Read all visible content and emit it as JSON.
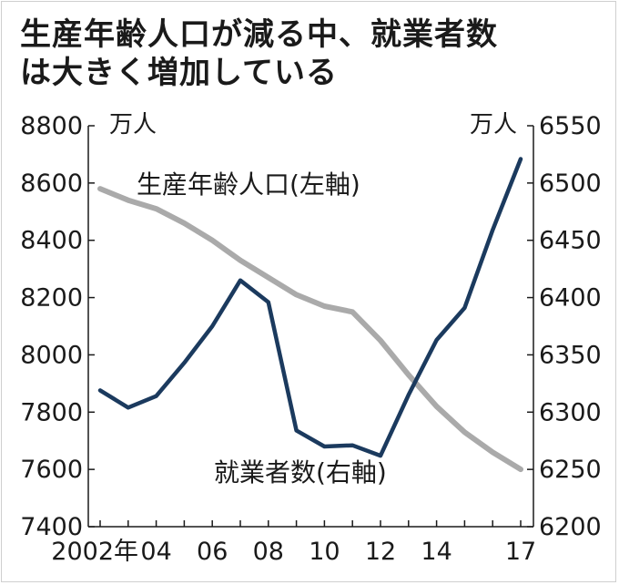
{
  "title_lines": [
    "生産年齢人口が減る中、就業者数",
    "は大きく増加している"
  ],
  "colors": {
    "working_age": "#aaaaaa",
    "employed": "#1b3a5e",
    "text": "#1a1a1a"
  },
  "chart_data": {
    "type": "line",
    "title": "生産年齢人口が減る中、就業者数は大きく増加している",
    "x": [
      2002,
      2003,
      2004,
      2005,
      2006,
      2007,
      2008,
      2009,
      2010,
      2011,
      2012,
      2013,
      2014,
      2015,
      2016,
      2017
    ],
    "x_tick_values": [
      2002,
      2004,
      2006,
      2008,
      2010,
      2012,
      2014,
      2017
    ],
    "x_tick_labels": [
      "2002年",
      "04",
      "06",
      "08",
      "10",
      "12",
      "14",
      "17"
    ],
    "left_axis": {
      "unit": "万人",
      "ylim": [
        7400,
        8800
      ],
      "ticks": [
        7400,
        7600,
        7800,
        8000,
        8200,
        8400,
        8600,
        8800
      ]
    },
    "right_axis": {
      "unit": "万人",
      "ylim": [
        6200,
        6550
      ],
      "ticks": [
        6200,
        6250,
        6300,
        6350,
        6400,
        6450,
        6500,
        6550
      ]
    },
    "grid": false,
    "series": [
      {
        "name": "生産年齢人口(左軸)",
        "axis": "left",
        "color": "#aaaaaa",
        "values": [
          8580,
          8540,
          8510,
          8460,
          8400,
          8330,
          8270,
          8210,
          8170,
          8150,
          8050,
          7930,
          7820,
          7730,
          7660,
          7600
        ]
      },
      {
        "name": "就業者数(右軸)",
        "axis": "right",
        "color": "#1b3a5e",
        "values": [
          6319,
          6304,
          6314,
          6343,
          6375,
          6415,
          6396,
          6284,
          6270,
          6271,
          6262,
          6315,
          6363,
          6391,
          6459,
          6521
        ]
      }
    ]
  }
}
